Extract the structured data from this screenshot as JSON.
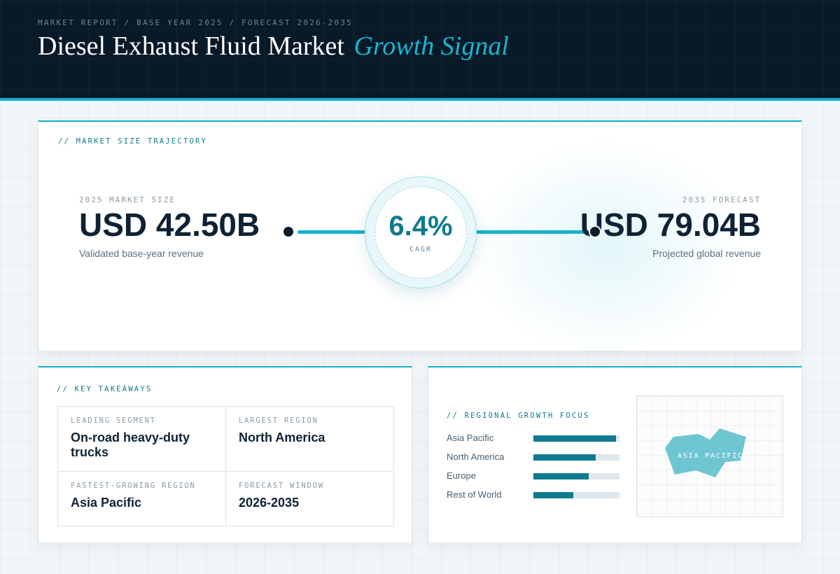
{
  "header": {
    "breadcrumb": "MARKET REPORT / BASE YEAR 2025 / FORECAST 2026-2035",
    "title_main": "Diesel Exhaust Fluid Market",
    "title_accent": "Growth Signal"
  },
  "trajectory": {
    "section_label": "// MARKET SIZE TRAJECTORY",
    "base": {
      "label": "2025 MARKET SIZE",
      "value": "USD 42.50B",
      "caption": "Validated base-year revenue"
    },
    "forecast": {
      "label": "2035 FORECAST",
      "value": "USD 79.04B",
      "caption": "Projected global revenue"
    },
    "cagr": {
      "value": "6.4%",
      "label": "CAGR"
    }
  },
  "takeaways": {
    "section_label": "// KEY TAKEAWAYS",
    "items": [
      {
        "label": "LEADING SEGMENT",
        "value": "On-road heavy-duty trucks"
      },
      {
        "label": "LARGEST REGION",
        "value": "North America"
      },
      {
        "label": "FASTEST-GROWING REGION",
        "value": "Asia Pacific"
      },
      {
        "label": "FORECAST WINDOW",
        "value": "2026-2035"
      }
    ]
  },
  "regional": {
    "section_label": "// REGIONAL GROWTH FOCUS",
    "regions": [
      {
        "name": "Asia Pacific",
        "level": 0.96
      },
      {
        "name": "North America",
        "level": 0.72
      },
      {
        "name": "Europe",
        "level": 0.64
      },
      {
        "name": "Rest of World",
        "level": 0.46
      }
    ],
    "map_label": "ASIA PACIFIC",
    "colors": {
      "bar_fill": "#0e7a8e",
      "bar_track": "#dfe7ed",
      "map_region": "#6fc6d3"
    }
  }
}
